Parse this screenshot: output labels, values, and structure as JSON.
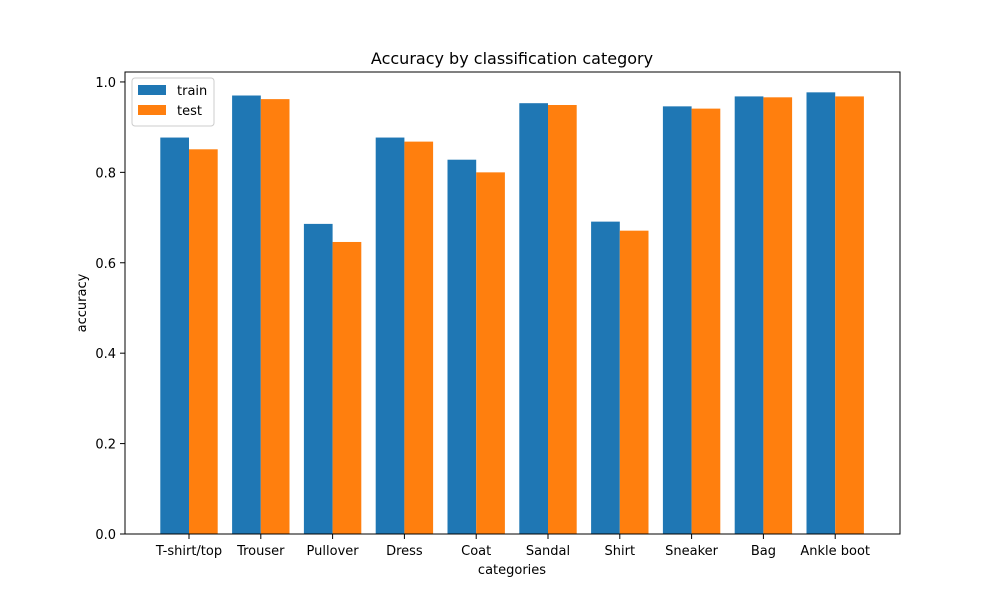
{
  "chart_data": {
    "type": "bar",
    "title": "Accuracy by classification category",
    "xlabel": "categories",
    "ylabel": "accuracy",
    "categories": [
      "T-shirt/top",
      "Trouser",
      "Pullover",
      "Dress",
      "Coat",
      "Sandal",
      "Shirt",
      "Sneaker",
      "Bag",
      "Ankle boot"
    ],
    "series": [
      {
        "name": "train",
        "color": "#1f77b4",
        "values": [
          0.877,
          0.97,
          0.686,
          0.877,
          0.828,
          0.953,
          0.691,
          0.946,
          0.968,
          0.977
        ]
      },
      {
        "name": "test",
        "color": "#ff7f0e",
        "values": [
          0.851,
          0.962,
          0.646,
          0.868,
          0.8,
          0.949,
          0.671,
          0.941,
          0.966,
          0.968
        ]
      }
    ],
    "ylim": [
      0,
      1.022
    ],
    "yticks": [
      "0.0",
      "0.2",
      "0.4",
      "0.6",
      "0.8",
      "1.0"
    ],
    "grid": false,
    "legend_position": "top-left"
  }
}
